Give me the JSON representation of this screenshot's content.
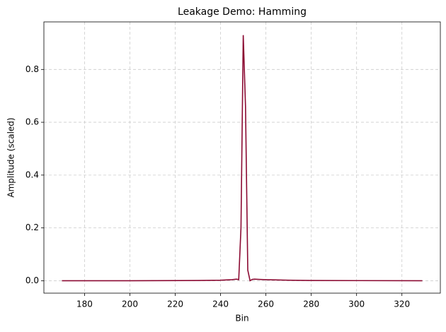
{
  "chart_data": {
    "type": "line",
    "title": "Leakage Demo: Hamming",
    "x_label": "Bin",
    "y_label": "Amplitude (scaled)",
    "x": [
      170,
      200,
      230,
      240,
      245,
      247,
      248,
      249,
      250,
      251,
      252,
      253,
      254,
      255,
      257,
      260,
      270,
      280,
      300,
      329
    ],
    "series": [
      {
        "color": "#8b0a32",
        "values": [
          0,
          0,
          0.001,
          0.002,
          0.004,
          0.006,
          0.004,
          0.2,
          0.93,
          0.66,
          0.04,
          0,
          0.005,
          0.006,
          0.005,
          0.004,
          0.002,
          0.001,
          0.0005,
          0
        ]
      }
    ],
    "xlim": [
      162.05,
      336.95
    ],
    "xticks": [
      180,
      200,
      220,
      240,
      260,
      280,
      300,
      320
    ],
    "ylim": [
      -0.047,
      0.98
    ],
    "yticks": [
      0.0,
      0.2,
      0.4,
      0.6,
      0.8
    ],
    "grid": true
  }
}
